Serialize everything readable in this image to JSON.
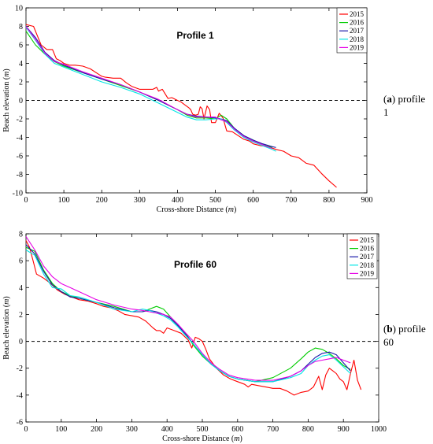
{
  "chart_data": [
    {
      "type": "line",
      "title": "Profile 1",
      "xlabel": "Cross-shore Distance (m)",
      "ylabel": "Beach elevation (m)",
      "xlim": [
        0,
        900
      ],
      "ylim": [
        -10,
        10
      ],
      "xticks": [
        0,
        100,
        200,
        300,
        400,
        500,
        600,
        700,
        800,
        900
      ],
      "yticks": [
        -10,
        -8,
        -6,
        -4,
        -2,
        0,
        2,
        4,
        6,
        8,
        10
      ],
      "reference_line": 0,
      "legend_position": "top-right",
      "series": [
        {
          "name": "2015",
          "color": "#ff0000",
          "x": [
            0,
            20,
            30,
            40,
            55,
            70,
            80,
            90,
            100,
            115,
            130,
            150,
            170,
            200,
            210,
            230,
            250,
            265,
            280,
            300,
            320,
            335,
            345,
            350,
            360,
            375,
            385,
            400,
            410,
            420,
            430,
            435,
            440,
            448,
            455,
            460,
            465,
            470,
            478,
            485,
            490,
            500,
            510,
            520,
            530,
            545,
            560,
            575,
            590,
            600,
            620,
            640,
            660,
            680,
            700,
            720,
            740,
            760,
            780,
            800,
            820
          ],
          "y": [
            8.2,
            8.0,
            7.0,
            6.0,
            5.5,
            5.5,
            4.5,
            4.3,
            4.0,
            3.8,
            3.8,
            3.7,
            3.4,
            2.6,
            2.5,
            2.4,
            2.4,
            1.9,
            1.5,
            1.2,
            1.2,
            1.2,
            1.4,
            1.0,
            1.2,
            0.2,
            0.3,
            0.0,
            -0.2,
            -0.5,
            -0.8,
            -1.0,
            -1.5,
            -1.6,
            -1.5,
            -0.7,
            -0.9,
            -2.0,
            -0.6,
            -1.0,
            -2.4,
            -2.4,
            -1.4,
            -1.9,
            -3.3,
            -3.4,
            -3.8,
            -4.2,
            -4.4,
            -4.7,
            -4.9,
            -5.0,
            -5.3,
            -5.5,
            -6.0,
            -6.2,
            -6.8,
            -7.0,
            -7.9,
            -8.7,
            -9.4
          ]
        },
        {
          "name": "2016",
          "color": "#00cc00",
          "x": [
            0,
            25,
            50,
            75,
            100,
            150,
            200,
            250,
            300,
            350,
            400,
            425,
            450,
            475,
            500,
            515,
            530,
            550,
            575,
            600,
            625,
            650
          ],
          "y": [
            7.5,
            6.0,
            5.0,
            4.2,
            3.7,
            3.0,
            2.3,
            1.6,
            0.9,
            0.0,
            -1.0,
            -1.6,
            -1.9,
            -1.9,
            -2.0,
            -1.6,
            -2.0,
            -3.0,
            -3.8,
            -4.3,
            -4.8,
            -5.1
          ]
        },
        {
          "name": "2017",
          "color": "#1a1aaa",
          "x": [
            0,
            25,
            50,
            75,
            100,
            150,
            200,
            250,
            300,
            350,
            400,
            425,
            450,
            475,
            500,
            515,
            530,
            550,
            575,
            600,
            625,
            650,
            660
          ],
          "y": [
            8.0,
            6.8,
            5.2,
            4.3,
            3.8,
            3.0,
            2.3,
            1.7,
            0.9,
            0.0,
            -1.0,
            -1.5,
            -1.7,
            -1.8,
            -1.9,
            -2.0,
            -2.2,
            -3.0,
            -3.8,
            -4.3,
            -4.7,
            -5.0,
            -5.1
          ]
        },
        {
          "name": "2018",
          "color": "#00e5e5",
          "x": [
            0,
            25,
            50,
            75,
            100,
            150,
            200,
            250,
            300,
            350,
            400,
            425,
            450,
            475,
            500,
            515,
            530,
            550,
            575,
            600,
            625,
            650,
            660
          ],
          "y": [
            7.9,
            6.5,
            5.0,
            4.0,
            3.6,
            2.8,
            2.0,
            1.4,
            0.7,
            -0.3,
            -1.3,
            -1.8,
            -2.1,
            -2.1,
            -2.0,
            -2.0,
            -2.4,
            -3.2,
            -4.0,
            -4.5,
            -4.9,
            -5.3,
            -5.5
          ]
        },
        {
          "name": "2019",
          "color": "#e600e6",
          "x": [
            0,
            25,
            50,
            75,
            100,
            150,
            200,
            250,
            300,
            350,
            400,
            425,
            450,
            475,
            500,
            515,
            530,
            550,
            575,
            600,
            625,
            650
          ],
          "y": [
            8.0,
            6.6,
            5.1,
            4.2,
            3.9,
            3.1,
            2.4,
            1.7,
            0.9,
            0.1,
            -1.0,
            -1.5,
            -1.8,
            -1.8,
            -1.8,
            -2.1,
            -2.3,
            -3.1,
            -3.9,
            -4.4,
            -4.8,
            -5.2
          ]
        }
      ]
    },
    {
      "type": "line",
      "title": "Profile 60",
      "xlabel": "Cross-shore Distance (m)",
      "ylabel": "Beach elevation (m)",
      "xlim": [
        0,
        1000
      ],
      "ylim": [
        -6,
        8
      ],
      "xticks": [
        0,
        100,
        200,
        300,
        400,
        500,
        600,
        700,
        800,
        900,
        1000
      ],
      "yticks": [
        -6,
        -4,
        -2,
        0,
        2,
        4,
        6,
        8
      ],
      "reference_line": 0,
      "legend_position": "top-right",
      "series": [
        {
          "name": "2015",
          "color": "#ff0000",
          "x": [
            0,
            10,
            20,
            30,
            50,
            70,
            90,
            110,
            130,
            150,
            175,
            200,
            220,
            240,
            260,
            280,
            300,
            320,
            340,
            360,
            370,
            380,
            390,
            400,
            420,
            440,
            460,
            470,
            480,
            490,
            500,
            510,
            520,
            540,
            560,
            580,
            600,
            620,
            630,
            640,
            660,
            680,
            700,
            720,
            740,
            760,
            780,
            800,
            815,
            830,
            840,
            850,
            860,
            870,
            880,
            890,
            900,
            910,
            920,
            930,
            940,
            950
          ],
          "y": [
            7.5,
            7.0,
            6.0,
            5.0,
            4.7,
            4.3,
            3.8,
            3.5,
            3.3,
            3.1,
            3.0,
            2.8,
            2.6,
            2.5,
            2.3,
            2.0,
            1.9,
            1.8,
            1.5,
            1.0,
            0.8,
            0.8,
            0.6,
            1.0,
            0.8,
            0.6,
            0.1,
            -0.5,
            0.3,
            0.2,
            0.0,
            -0.6,
            -1.3,
            -2.0,
            -2.5,
            -2.8,
            -3.0,
            -3.2,
            -3.4,
            -3.2,
            -3.3,
            -3.4,
            -3.5,
            -3.5,
            -3.7,
            -4.0,
            -3.8,
            -3.7,
            -3.4,
            -2.6,
            -3.6,
            -2.5,
            -2.0,
            -2.2,
            -2.4,
            -2.8,
            -3.0,
            -3.6,
            -2.4,
            -1.4,
            -2.9,
            -3.6
          ]
        },
        {
          "name": "2016",
          "color": "#00cc00",
          "x": [
            0,
            25,
            50,
            75,
            100,
            125,
            150,
            200,
            250,
            300,
            330,
            350,
            370,
            390,
            410,
            430,
            450,
            475,
            500,
            525,
            550,
            575,
            600,
            650,
            700,
            750,
            780,
            800,
            820,
            840,
            860,
            880,
            900,
            920
          ],
          "y": [
            7.0,
            6.7,
            5.3,
            4.3,
            3.7,
            3.4,
            3.2,
            2.9,
            2.6,
            2.2,
            2.2,
            2.4,
            2.6,
            2.4,
            1.8,
            1.2,
            0.7,
            -0.3,
            -1.1,
            -1.7,
            -2.2,
            -2.6,
            -2.8,
            -3.0,
            -2.7,
            -2.0,
            -1.3,
            -0.8,
            -0.5,
            -0.6,
            -0.9,
            -1.3,
            -1.8,
            -2.1
          ]
        },
        {
          "name": "2017",
          "color": "#1a1aaa",
          "x": [
            0,
            25,
            50,
            75,
            100,
            125,
            150,
            200,
            250,
            300,
            330,
            350,
            370,
            390,
            410,
            430,
            450,
            475,
            500,
            525,
            550,
            575,
            600,
            650,
            700,
            750,
            780,
            800,
            820,
            840,
            860,
            880,
            900,
            920
          ],
          "y": [
            7.2,
            6.5,
            5.2,
            4.2,
            3.7,
            3.3,
            3.2,
            2.9,
            2.5,
            2.2,
            2.2,
            2.3,
            2.2,
            2.0,
            1.7,
            1.2,
            0.6,
            -0.2,
            -1.0,
            -1.7,
            -2.2,
            -2.6,
            -2.8,
            -3.0,
            -3.0,
            -2.6,
            -2.2,
            -1.7,
            -1.2,
            -0.9,
            -0.8,
            -1.0,
            -1.6,
            -2.2
          ]
        },
        {
          "name": "2018",
          "color": "#00e5e5",
          "x": [
            0,
            25,
            50,
            75,
            100,
            125,
            150,
            200,
            250,
            300,
            330,
            350,
            370,
            390,
            410,
            430,
            450,
            475,
            500,
            525,
            550,
            575,
            600,
            650,
            700,
            750,
            780,
            800,
            820,
            840,
            860,
            880,
            900,
            920
          ],
          "y": [
            6.8,
            6.4,
            5.0,
            4.0,
            3.9,
            3.4,
            3.3,
            2.9,
            2.4,
            2.2,
            2.4,
            2.3,
            2.1,
            1.9,
            1.6,
            1.1,
            0.5,
            -0.2,
            -1.0,
            -1.7,
            -2.2,
            -2.6,
            -2.8,
            -3.0,
            -3.0,
            -2.7,
            -2.4,
            -1.8,
            -1.4,
            -1.1,
            -1.0,
            -1.4,
            -1.9,
            -2.4
          ]
        },
        {
          "name": "2019",
          "color": "#e600e6",
          "x": [
            0,
            25,
            50,
            75,
            100,
            125,
            150,
            200,
            250,
            300,
            330,
            350,
            370,
            390,
            410,
            430,
            450,
            475,
            500,
            525,
            550,
            575,
            600,
            650,
            700,
            750,
            780,
            800,
            820,
            840,
            860,
            880,
            900,
            920
          ],
          "y": [
            7.8,
            6.8,
            5.6,
            4.8,
            4.3,
            4.0,
            3.7,
            3.1,
            2.7,
            2.4,
            2.3,
            2.2,
            2.1,
            2.0,
            1.8,
            1.3,
            0.7,
            0.0,
            -0.9,
            -1.6,
            -2.1,
            -2.5,
            -2.7,
            -2.9,
            -2.9,
            -2.6,
            -2.2,
            -1.8,
            -1.5,
            -1.4,
            -1.3,
            -1.2,
            -1.4,
            -1.6
          ]
        }
      ]
    }
  ],
  "captions": [
    {
      "letter": "a",
      "text": "profile 1"
    },
    {
      "letter": "b",
      "text": "profile 60"
    }
  ]
}
